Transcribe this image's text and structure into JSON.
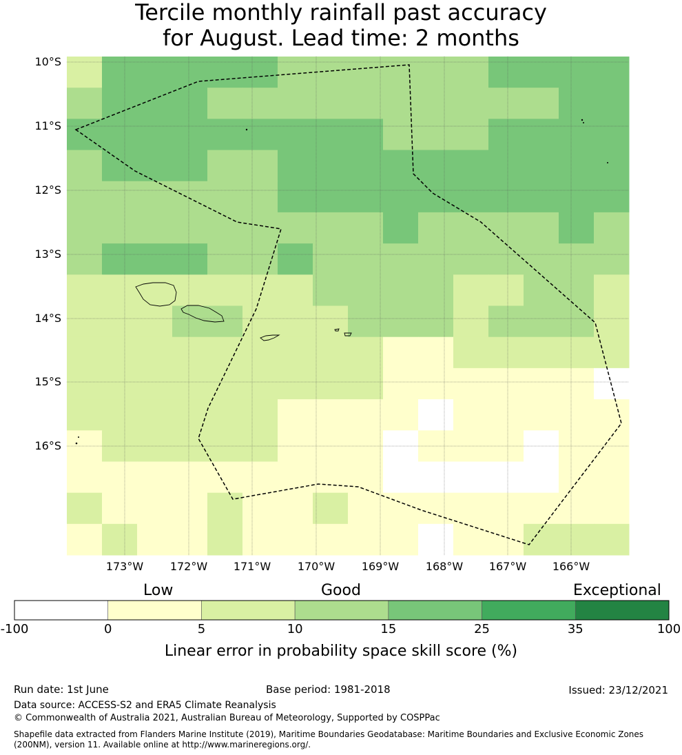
{
  "title": {
    "line1": "Tercile monthly rainfall past accuracy",
    "line2": "for August. Lead time: 2 months"
  },
  "map": {
    "lat_labels": [
      "10°S",
      "11°S",
      "12°S",
      "13°S",
      "14°S",
      "15°S",
      "16°S"
    ],
    "lon_labels": [
      "173°W",
      "172°W",
      "171°W",
      "170°W",
      "169°W",
      "168°W",
      "167°W",
      "166°W"
    ],
    "grid_levels": [
      [
        2,
        4,
        4,
        4,
        4,
        4,
        3,
        3,
        3,
        3,
        3,
        3,
        4,
        4,
        4,
        4
      ],
      [
        3,
        4,
        4,
        4,
        3,
        3,
        3,
        3,
        3,
        3,
        3,
        3,
        3,
        3,
        4,
        4
      ],
      [
        4,
        4,
        4,
        4,
        4,
        4,
        4,
        4,
        4,
        3,
        3,
        3,
        4,
        4,
        4,
        4
      ],
      [
        3,
        4,
        4,
        4,
        3,
        3,
        4,
        4,
        4,
        4,
        4,
        4,
        4,
        4,
        4,
        4
      ],
      [
        3,
        3,
        3,
        3,
        3,
        3,
        4,
        4,
        4,
        4,
        4,
        4,
        4,
        4,
        4,
        4
      ],
      [
        3,
        3,
        3,
        3,
        3,
        3,
        3,
        3,
        3,
        4,
        3,
        3,
        3,
        3,
        4,
        3
      ],
      [
        3,
        4,
        4,
        4,
        3,
        3,
        4,
        3,
        3,
        3,
        3,
        3,
        3,
        3,
        3,
        3
      ],
      [
        2,
        2,
        2,
        2,
        2,
        2,
        2,
        3,
        3,
        3,
        3,
        2,
        2,
        3,
        3,
        2
      ],
      [
        2,
        2,
        2,
        3,
        3,
        2,
        2,
        2,
        3,
        3,
        3,
        2,
        3,
        3,
        3,
        2
      ],
      [
        2,
        2,
        2,
        2,
        2,
        2,
        2,
        2,
        2,
        1,
        1,
        2,
        2,
        2,
        2,
        2
      ],
      [
        2,
        2,
        2,
        2,
        2,
        2,
        2,
        2,
        2,
        1,
        1,
        1,
        1,
        1,
        1,
        0
      ],
      [
        2,
        2,
        2,
        2,
        2,
        2,
        1,
        1,
        1,
        1,
        0,
        1,
        1,
        1,
        1,
        1
      ],
      [
        1,
        2,
        2,
        2,
        2,
        2,
        1,
        1,
        1,
        0,
        1,
        1,
        1,
        0,
        1,
        1
      ],
      [
        1,
        1,
        1,
        1,
        1,
        1,
        1,
        1,
        1,
        0,
        0,
        0,
        0,
        0,
        1,
        1
      ],
      [
        2,
        1,
        1,
        1,
        2,
        1,
        1,
        2,
        1,
        1,
        1,
        1,
        1,
        1,
        1,
        1
      ],
      [
        1,
        2,
        1,
        1,
        2,
        1,
        1,
        1,
        1,
        1,
        0,
        1,
        1,
        2,
        2,
        2
      ]
    ]
  },
  "legend": {
    "categories": [
      "Low",
      "Good",
      "Exceptional"
    ],
    "ticks": [
      "-100",
      "0",
      "5",
      "10",
      "15",
      "25",
      "35",
      "100"
    ],
    "colors": [
      "#ffffff",
      "#ffffcc",
      "#d9f0a3",
      "#addd8e",
      "#78c679",
      "#41ab5d",
      "#238443"
    ],
    "label": "Linear error in probability space skill score (%)"
  },
  "footer": {
    "run_date": "Run date: 1st June",
    "base_period": "Base period: 1981-2018",
    "issued": "Issued: 23/12/2021",
    "data_source": "Data source: ACCESS-S2 and ERA5 Climate Reanalysis",
    "copyright": "© Commonwealth of Australia 2021, Australian Bureau of Meteorology, Supported by COSPPac",
    "shapefile_line1": "Shapefile data extracted from Flanders Marine Institute (2019), Maritime Boundaries Geodatabase: Maritime Boundaries and Exclusive Economic Zones",
    "shapefile_line2": "(200NM), version 11. Available online at http://www.marineregions.org/."
  }
}
